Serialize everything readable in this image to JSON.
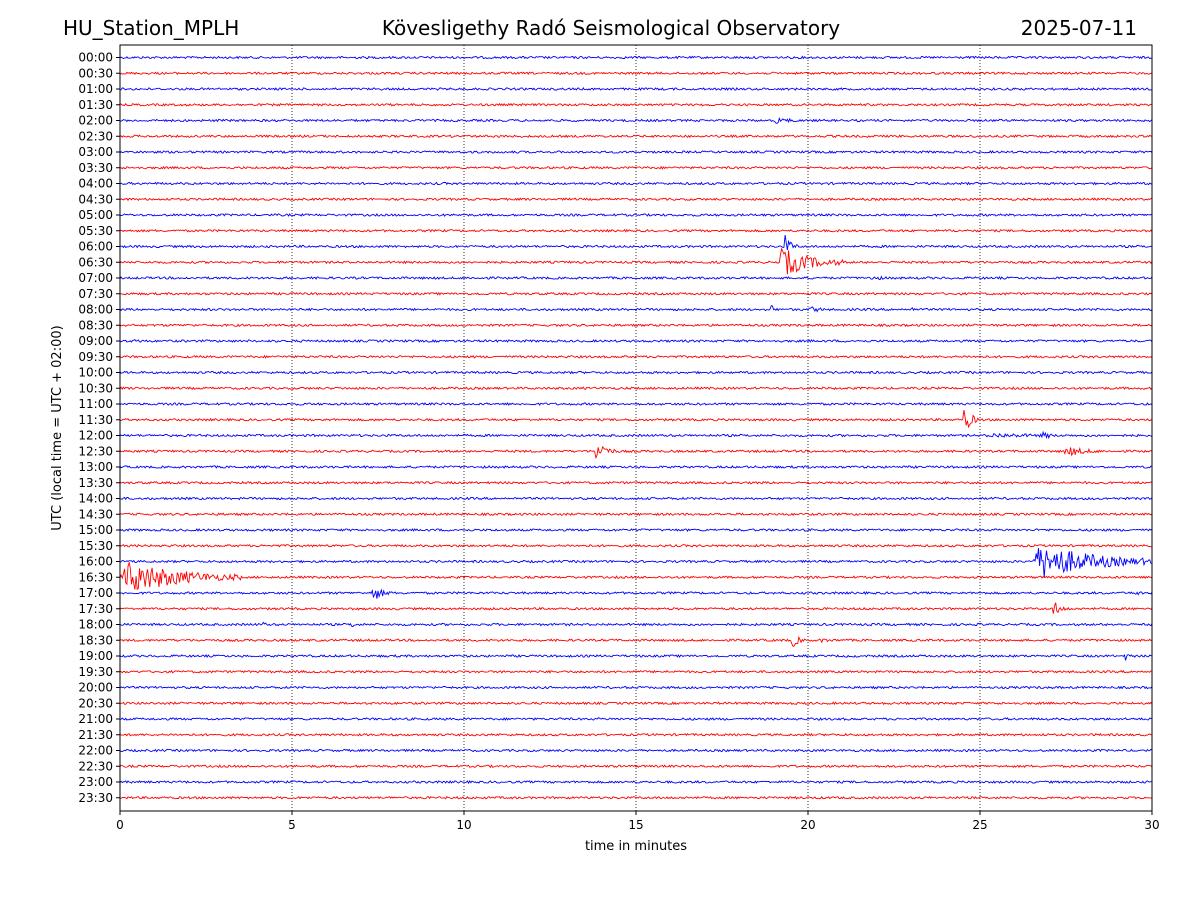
{
  "header": {
    "station": "HU_Station_MPLH",
    "observatory": "Kövesligethy Radó Seismological Observatory",
    "date": "2025-07-11"
  },
  "chart_data": {
    "type": "line",
    "title": "Kövesligethy Radó Seismological Observatory",
    "xlabel": "time in minutes",
    "ylabel": "UTC (local time = UTC + 02:00)",
    "xlim": [
      0,
      30
    ],
    "xticks": [
      "0",
      "5",
      "10",
      "15",
      "20",
      "25",
      "30"
    ],
    "xtick_values": [
      0,
      5,
      10,
      15,
      20,
      25,
      30
    ],
    "grid": "vertical dotted lines at x ticks",
    "colors": [
      "#0000ff",
      "#ff0000"
    ],
    "rows": [
      "00:00",
      "00:30",
      "01:00",
      "01:30",
      "02:00",
      "02:30",
      "03:00",
      "03:30",
      "04:00",
      "04:30",
      "05:00",
      "05:30",
      "06:00",
      "06:30",
      "07:00",
      "07:30",
      "08:00",
      "08:30",
      "09:00",
      "09:30",
      "10:00",
      "10:30",
      "11:00",
      "11:30",
      "12:00",
      "12:30",
      "13:00",
      "13:30",
      "14:00",
      "14:30",
      "15:00",
      "15:30",
      "16:00",
      "16:30",
      "17:00",
      "17:30",
      "18:00",
      "18:30",
      "19:00",
      "19:30",
      "20:00",
      "20:30",
      "21:00",
      "21:30",
      "22:00",
      "22:30",
      "23:00",
      "23:30"
    ],
    "events": [
      {
        "row": "02:00",
        "start": 19.0,
        "end": 20.2,
        "amplitude": 4
      },
      {
        "row": "06:00",
        "start": 19.3,
        "end": 19.7,
        "amplitude": 14
      },
      {
        "row": "06:30",
        "start": 19.1,
        "end": 21.0,
        "amplitude": 18
      },
      {
        "row": "07:00",
        "start": 21.8,
        "end": 22.6,
        "amplitude": 4
      },
      {
        "row": "08:00",
        "start": 18.9,
        "end": 19.1,
        "amplitude": 9
      },
      {
        "row": "08:00",
        "start": 20.0,
        "end": 21.0,
        "amplitude": 4
      },
      {
        "row": "08:00",
        "start": 23.0,
        "end": 23.3,
        "amplitude": 3
      },
      {
        "row": "09:00",
        "start": 0.4,
        "end": 0.8,
        "amplitude": 4
      },
      {
        "row": "11:30",
        "start": 24.5,
        "end": 25.0,
        "amplitude": 16
      },
      {
        "row": "12:00",
        "start": 25.0,
        "end": 30.0,
        "amplitude": 3
      },
      {
        "row": "12:00",
        "start": 26.8,
        "end": 27.3,
        "amplitude": 6
      },
      {
        "row": "12:30",
        "start": 13.8,
        "end": 14.4,
        "amplitude": 16
      },
      {
        "row": "12:30",
        "start": 27.4,
        "end": 29.0,
        "amplitude": 6
      },
      {
        "row": "16:00",
        "start": 26.5,
        "end": 30.0,
        "amplitude": 22
      },
      {
        "row": "16:30",
        "start": 0.0,
        "end": 3.5,
        "amplitude": 20
      },
      {
        "row": "17:00",
        "start": 7.3,
        "end": 7.9,
        "amplitude": 11
      },
      {
        "row": "17:00",
        "start": 29.5,
        "end": 29.8,
        "amplitude": 5
      },
      {
        "row": "17:30",
        "start": 27.1,
        "end": 27.6,
        "amplitude": 10
      },
      {
        "row": "18:00",
        "start": 4.1,
        "end": 4.5,
        "amplitude": 4
      },
      {
        "row": "18:00",
        "start": 6.7,
        "end": 7.0,
        "amplitude": 5
      },
      {
        "row": "18:30",
        "start": 19.5,
        "end": 20.0,
        "amplitude": 9
      },
      {
        "row": "18:30",
        "start": 20.3,
        "end": 21.2,
        "amplitude": 3
      },
      {
        "row": "19:00",
        "start": 29.2,
        "end": 29.5,
        "amplitude": 6
      }
    ]
  }
}
